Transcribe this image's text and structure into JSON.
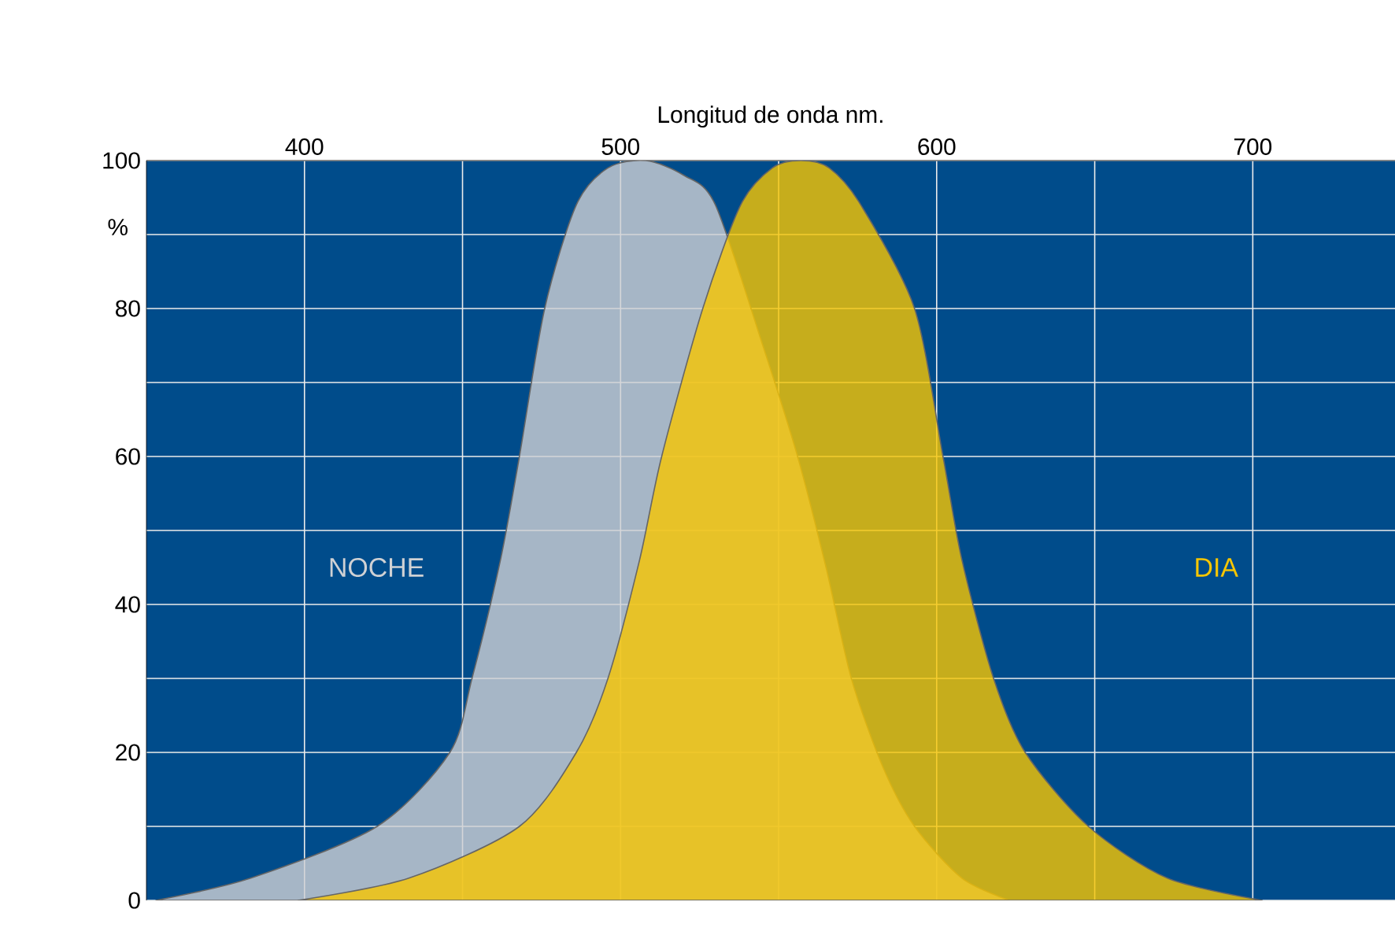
{
  "chart_data": {
    "type": "area",
    "xlabel": "Longitud de onda nm.",
    "ylabel": "%",
    "xlim": [
      350,
      745
    ],
    "ylim": [
      0,
      100
    ],
    "xticks": [
      400,
      {
        "value": 450,
        "label": null
      },
      500,
      {
        "value": 550,
        "label": null
      },
      600,
      {
        "value": 650,
        "label": null
      },
      700
    ],
    "yticks": [
      0,
      {
        "value": 10,
        "label": null
      },
      20,
      {
        "value": 30,
        "label": null
      },
      40,
      {
        "value": 50,
        "label": null
      },
      60,
      {
        "value": 70,
        "label": null
      },
      80,
      {
        "value": 90,
        "label": null
      },
      100
    ],
    "grid": true,
    "series": [
      {
        "name": "NOCHE",
        "color": "#cfd1d4",
        "x": [
          353,
          383,
          423,
          446,
          453,
          462,
          468,
          476,
          486,
          496,
          508,
          520,
          530,
          545,
          556,
          565,
          573,
          583,
          593,
          608,
          623
        ],
        "values": [
          0,
          3,
          10,
          20,
          30,
          46,
          60,
          80,
          94,
          99,
          100,
          98,
          94,
          75,
          60,
          45,
          30,
          18,
          10,
          3,
          0
        ]
      },
      {
        "name": "DIA",
        "color": "#f7c600",
        "x": [
          398,
          433,
          468,
          486,
          496,
          506,
          513,
          526,
          538,
          548,
          557,
          566,
          576,
          593,
          602,
          608,
          618,
          628,
          648,
          673,
          703
        ],
        "values": [
          0,
          3,
          10,
          20,
          30,
          46,
          60,
          80,
          94,
          99,
          100,
          99,
          94,
          80,
          60,
          46,
          30,
          20,
          10,
          3,
          0
        ]
      }
    ]
  }
}
